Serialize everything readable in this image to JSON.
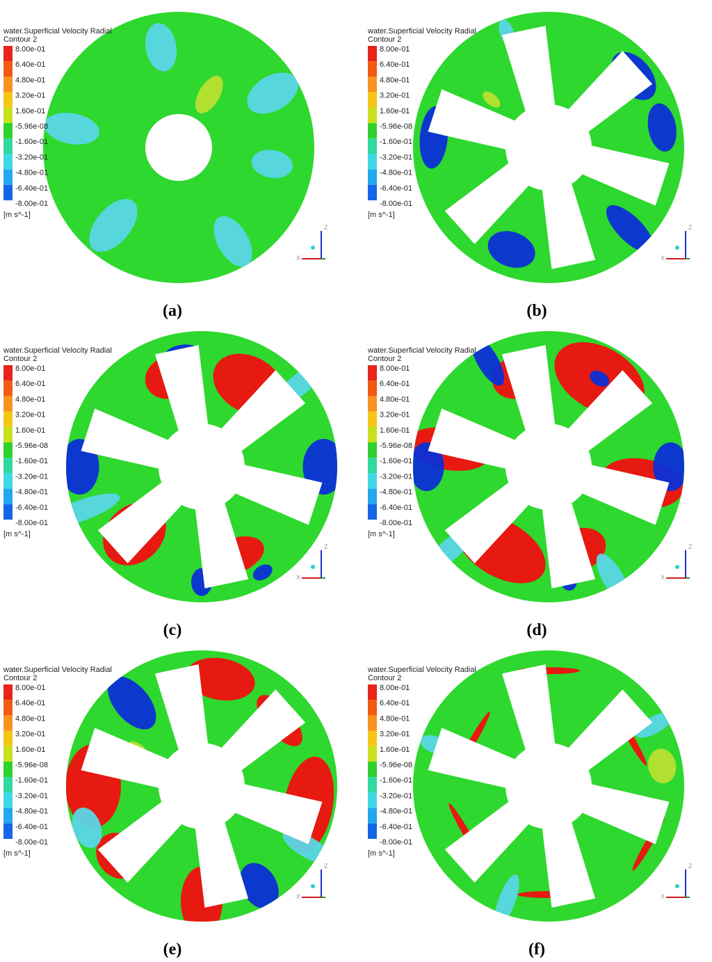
{
  "legend": {
    "title": "water.Superficial Velocity Radial",
    "subtitle": "Contour 2",
    "labels": [
      "8.00e-01",
      "6.40e-01",
      "4.80e-01",
      "3.20e-01",
      "1.60e-01",
      "-5.96e-08",
      "-1.60e-01",
      "-3.20e-01",
      "-4.80e-01",
      "-6.40e-01",
      "-8.00e-01"
    ],
    "unit": "[m s^-1]"
  },
  "axes": {
    "z": "Z",
    "x": "X"
  },
  "panels": [
    {
      "caption": "(a)"
    },
    {
      "caption": "(b)"
    },
    {
      "caption": "(c)"
    },
    {
      "caption": "(d)"
    },
    {
      "caption": "(e)"
    },
    {
      "caption": "(f)"
    }
  ]
}
